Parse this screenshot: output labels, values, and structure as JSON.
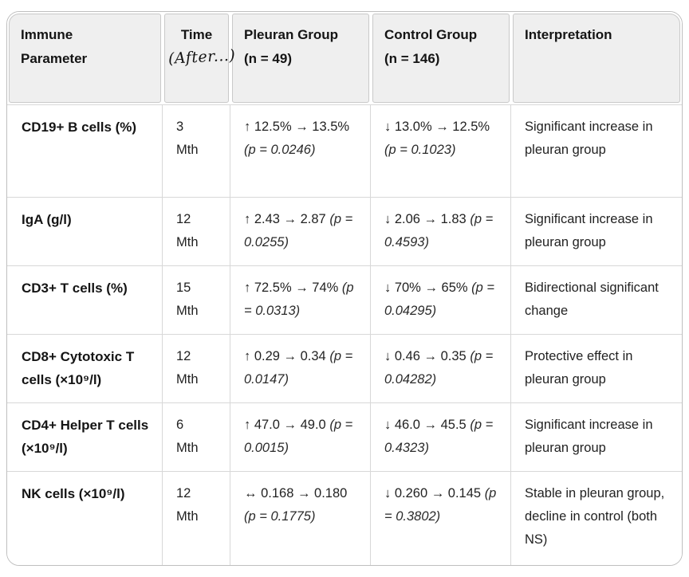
{
  "colors": {
    "header_bg": "#efefef",
    "table_border": "#bfbfbf",
    "grid_line": "#d8d8d8",
    "text": "#1a1a1a"
  },
  "headers": {
    "parameter_line1": "Immune",
    "parameter_line2": "Parameter",
    "time": "Time",
    "time_sub": "(After...)",
    "pleuran_line1": "Pleuran Group",
    "pleuran_line2": "(n = 49)",
    "control_line1": "Control Group",
    "control_line2": "(n = 146)",
    "interpretation": "Interpretation"
  },
  "rows": [
    {
      "parameter": "CD19+ B cells (%)",
      "time_value": "3",
      "time_unit": "Mth",
      "pleuran_value": "↑ 12.5% → 13.5%",
      "pleuran_p": "(p = 0.0246)",
      "control_value": "↓ 13.0% → 12.5%",
      "control_p": "(p = 0.1023)",
      "interpretation": "Significant increase in pleuran group"
    },
    {
      "parameter": "IgA (g/l)",
      "time_value": "12",
      "time_unit": "Mth",
      "pleuran_value": "↑ 2.43 → 2.87",
      "pleuran_p": "(p = 0.0255)",
      "control_value": "↓ 2.06 → 1.83",
      "control_p": "(p = 0.4593)",
      "interpretation": "Significant increase in pleuran group"
    },
    {
      "parameter": "CD3+ T cells (%)",
      "time_value": "15",
      "time_unit": "Mth",
      "pleuran_value": "↑ 72.5% → 74%",
      "pleuran_p": "(p = 0.0313)",
      "control_value": "↓ 70% → 65%",
      "control_p": "(p = 0.04295)",
      "interpretation": "Bidirectional significant change"
    },
    {
      "parameter": "CD8+ Cytotoxic T cells (×10⁹/l)",
      "time_value": "12",
      "time_unit": "Mth",
      "pleuran_value": "↑ 0.29 → 0.34",
      "pleuran_p": "(p = 0.0147)",
      "control_value": "↓ 0.46 → 0.35",
      "control_p": "(p = 0.04282)",
      "interpretation": "Protective effect in pleuran group"
    },
    {
      "parameter": "CD4+ Helper T cells (×10⁹/l)",
      "time_value": "6",
      "time_unit": "Mth",
      "pleuran_value": "↑ 47.0 → 49.0",
      "pleuran_p": "(p = 0.0015)",
      "control_value": "↓ 46.0 → 45.5",
      "control_p": "(p = 0.4323)",
      "interpretation": "Significant increase in pleuran group"
    },
    {
      "parameter": "NK cells (×10⁹/l)",
      "time_value": "12",
      "time_unit": "Mth",
      "pleuran_value": "↔ 0.168 → 0.180",
      "pleuran_p": "(p = 0.1775)",
      "control_value": "↓ 0.260 → 0.145",
      "control_p": "(p = 0.3802)",
      "interpretation": "Stable in pleuran group, decline in control (both NS)"
    }
  ]
}
